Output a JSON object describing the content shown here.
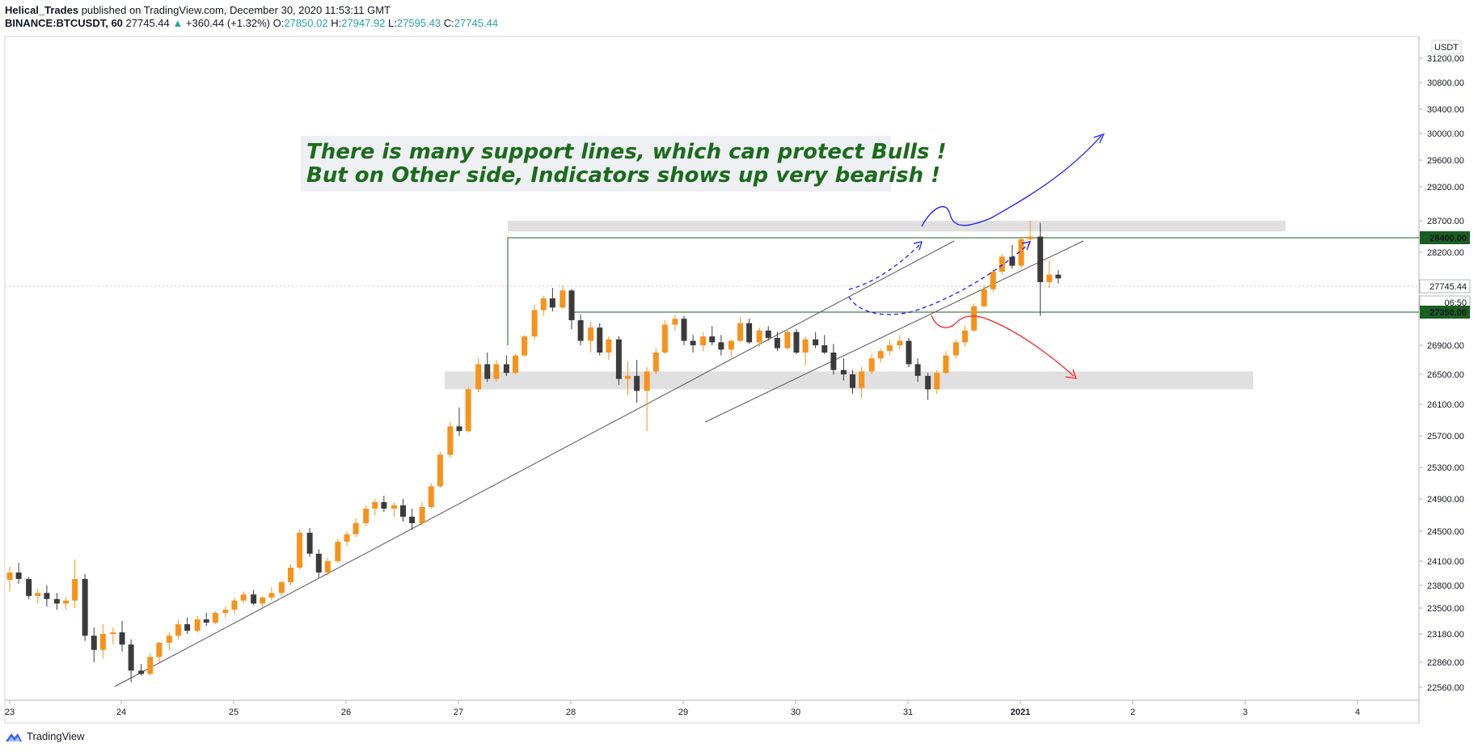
{
  "header": {
    "author": "Helical_Trades",
    "published": "published on TradingView.com, December 30, 2020 11:53:11 GMT",
    "symbol": "BINANCE:BTCUSDT, 60",
    "last": "27745.44",
    "change_arrow": "▲",
    "change": "+360.44 (+1.32%)",
    "o_label": "O:",
    "o": "27850.02",
    "h_label": "H:",
    "h": "27947.92",
    "l_label": "L:",
    "l": "27595.43",
    "c_label": "C:",
    "c": "27745.44"
  },
  "footer": {
    "brand": "TradingView",
    "icon": "tradingview-logo-icon"
  },
  "colors": {
    "up": "#f7931a",
    "down": "#3b3b3b",
    "support": "#1b5e20",
    "bull_arrow": "#1a1aff",
    "bear_arrow": "#ff2020",
    "zone": "#e0e0e0",
    "annotation": "#1b6b1b"
  },
  "chart_data": {
    "type": "candlestick",
    "currency_badge": "USDT",
    "y_ticks": [
      "31200.00",
      "30800.00",
      "30400.00",
      "30000.00",
      "29600.00",
      "29200.00",
      "28700.00",
      "28200.00",
      "26900.00",
      "26500.00",
      "26100.00",
      "25700.00",
      "25300.00",
      "24900.00",
      "24500.00",
      "24100.00",
      "23800.00",
      "23500.00",
      "23180.00",
      "22860.00",
      "22560.00"
    ],
    "x_ticks": [
      "23",
      "24",
      "25",
      "26",
      "27",
      "28",
      "29",
      "30",
      "31",
      "2021",
      "2",
      "3",
      "4"
    ],
    "price_labels": [
      {
        "id": "resistance",
        "text": "28400.00",
        "color": "#1b5e20"
      },
      {
        "id": "last",
        "text": "27745.44",
        "color": "#ffffff"
      },
      {
        "id": "countdown",
        "text": "06:50",
        "color": "#ffffff"
      },
      {
        "id": "support",
        "text": "27350.00",
        "color": "#1b5e20"
      }
    ],
    "horizontal_lines": [
      28400,
      27350
    ],
    "zones": [
      [
        28700,
        28510
      ],
      [
        26540,
        26300
      ]
    ],
    "annotation": {
      "line1": "There is many support lines, which can protect Bulls !",
      "line2": "But on Other side, Indicators shows up very bearish !"
    },
    "candles": [
      [
        0.0,
        23870,
        24030,
        23720,
        23960
      ],
      [
        0.08,
        23960,
        24080,
        23820,
        23880
      ],
      [
        0.17,
        23880,
        23900,
        23620,
        23660
      ],
      [
        0.25,
        23660,
        23760,
        23560,
        23700
      ],
      [
        0.33,
        23700,
        23800,
        23520,
        23620
      ],
      [
        0.42,
        23620,
        23700,
        23480,
        23560
      ],
      [
        0.5,
        23560,
        23640,
        23480,
        23600
      ],
      [
        0.58,
        23600,
        24120,
        23500,
        23880
      ],
      [
        0.67,
        23880,
        23940,
        23100,
        23160
      ],
      [
        0.75,
        23160,
        23260,
        22860,
        23000
      ],
      [
        0.83,
        23000,
        23300,
        22900,
        23180
      ],
      [
        0.92,
        23180,
        23260,
        23060,
        23200
      ],
      [
        1.0,
        23200,
        23340,
        22980,
        23060
      ],
      [
        1.08,
        23060,
        23120,
        22620,
        22760
      ],
      [
        1.17,
        22760,
        22840,
        22700,
        22720
      ],
      [
        1.25,
        22720,
        22960,
        22700,
        22920
      ],
      [
        1.33,
        22920,
        23090,
        22860,
        23080
      ],
      [
        1.42,
        23080,
        23200,
        23000,
        23160
      ],
      [
        1.5,
        23160,
        23360,
        23120,
        23300
      ],
      [
        1.58,
        23300,
        23380,
        23180,
        23220
      ],
      [
        1.67,
        23220,
        23400,
        23200,
        23360
      ],
      [
        1.75,
        23360,
        23440,
        23280,
        23320
      ],
      [
        1.83,
        23320,
        23460,
        23300,
        23440
      ],
      [
        1.92,
        23440,
        23520,
        23380,
        23480
      ],
      [
        2.0,
        23480,
        23640,
        23420,
        23600
      ],
      [
        2.08,
        23600,
        23720,
        23560,
        23680
      ],
      [
        2.17,
        23680,
        23740,
        23540,
        23560
      ],
      [
        2.25,
        23560,
        23660,
        23500,
        23640
      ],
      [
        2.33,
        23640,
        23780,
        23600,
        23700
      ],
      [
        2.42,
        23700,
        23860,
        23660,
        23840
      ],
      [
        2.5,
        23840,
        24060,
        23800,
        24020
      ],
      [
        2.58,
        24020,
        24520,
        24000,
        24480
      ],
      [
        2.67,
        24480,
        24540,
        24160,
        24200
      ],
      [
        2.75,
        24200,
        24260,
        23900,
        23960
      ],
      [
        2.83,
        23960,
        24140,
        23920,
        24100
      ],
      [
        2.92,
        24100,
        24400,
        24080,
        24360
      ],
      [
        3.0,
        24360,
        24500,
        24300,
        24460
      ],
      [
        3.08,
        24460,
        24660,
        24420,
        24600
      ],
      [
        3.17,
        24600,
        24820,
        24560,
        24780
      ],
      [
        3.25,
        24780,
        24900,
        24700,
        24860
      ],
      [
        3.33,
        24860,
        24940,
        24740,
        24780
      ],
      [
        3.42,
        24780,
        24860,
        24680,
        24820
      ],
      [
        3.5,
        24820,
        24900,
        24620,
        24680
      ],
      [
        3.58,
        24680,
        24780,
        24520,
        24600
      ],
      [
        3.67,
        24600,
        24860,
        24580,
        24800
      ],
      [
        3.75,
        24800,
        25100,
        24780,
        25060
      ],
      [
        3.83,
        25060,
        25500,
        25040,
        25460
      ],
      [
        3.92,
        25460,
        25880,
        25420,
        25820
      ],
      [
        4.0,
        25820,
        26060,
        25700,
        25760
      ],
      [
        4.08,
        25760,
        26320,
        25740,
        26300
      ],
      [
        4.17,
        26300,
        26720,
        26260,
        26640
      ],
      [
        4.25,
        26640,
        26800,
        26400,
        26440
      ],
      [
        4.33,
        26440,
        26700,
        26400,
        26640
      ],
      [
        4.42,
        26640,
        26760,
        26480,
        26520
      ],
      [
        4.5,
        26520,
        26780,
        26500,
        26760
      ],
      [
        4.58,
        26760,
        27040,
        26740,
        27020
      ],
      [
        4.67,
        27020,
        27460,
        26980,
        27380
      ],
      [
        4.75,
        27380,
        27600,
        27300,
        27560
      ],
      [
        4.83,
        27560,
        27720,
        27360,
        27420
      ],
      [
        4.92,
        27420,
        27760,
        27400,
        27680
      ],
      [
        5.0,
        27680,
        27700,
        27120,
        27240
      ],
      [
        5.08,
        27240,
        27320,
        26900,
        26960
      ],
      [
        5.17,
        26960,
        27220,
        26800,
        27140
      ],
      [
        5.25,
        27140,
        27200,
        26760,
        26800
      ],
      [
        5.33,
        26800,
        27020,
        26700,
        26980
      ],
      [
        5.42,
        26980,
        27020,
        26360,
        26440
      ],
      [
        5.5,
        26440,
        26680,
        26220,
        26480
      ],
      [
        5.58,
        26480,
        26700,
        26120,
        26280
      ],
      [
        5.67,
        26280,
        26600,
        25760,
        26540
      ],
      [
        5.75,
        26540,
        26860,
        26500,
        26800
      ],
      [
        5.83,
        26800,
        27240,
        26780,
        27180
      ],
      [
        5.92,
        27180,
        27320,
        27100,
        27260
      ],
      [
        6.0,
        27260,
        27300,
        26900,
        26960
      ],
      [
        6.08,
        26960,
        27040,
        26800,
        26900
      ],
      [
        6.17,
        26900,
        27080,
        26820,
        27020
      ],
      [
        6.25,
        27020,
        27160,
        26900,
        26940
      ],
      [
        6.33,
        26940,
        27040,
        26760,
        26840
      ],
      [
        6.42,
        26840,
        26980,
        26740,
        26960
      ],
      [
        6.5,
        26960,
        27280,
        26940,
        27200
      ],
      [
        6.58,
        27200,
        27260,
        26920,
        26940
      ],
      [
        6.67,
        26940,
        27140,
        26880,
        27100
      ],
      [
        6.75,
        27100,
        27160,
        26960,
        27000
      ],
      [
        6.83,
        27000,
        27080,
        26820,
        26860
      ],
      [
        6.92,
        26860,
        27120,
        26840,
        27080
      ],
      [
        7.0,
        27080,
        27120,
        26780,
        26800
      ],
      [
        7.08,
        26800,
        27020,
        26620,
        26980
      ],
      [
        7.17,
        26980,
        27080,
        26860,
        26900
      ],
      [
        7.25,
        26900,
        27040,
        26780,
        26800
      ],
      [
        7.33,
        26800,
        26920,
        26500,
        26560
      ],
      [
        7.42,
        26560,
        26720,
        26420,
        26500
      ],
      [
        7.5,
        26500,
        26560,
        26240,
        26320
      ],
      [
        7.58,
        26320,
        26600,
        26180,
        26540
      ],
      [
        7.67,
        26540,
        26780,
        26500,
        26720
      ],
      [
        7.75,
        26720,
        26860,
        26660,
        26820
      ],
      [
        7.83,
        26820,
        26980,
        26760,
        26900
      ],
      [
        7.92,
        26900,
        27040,
        26840,
        26960
      ],
      [
        8.0,
        26960,
        27000,
        26600,
        26640
      ],
      [
        8.08,
        26640,
        26720,
        26400,
        26480
      ],
      [
        8.17,
        26480,
        26520,
        26160,
        26300
      ],
      [
        8.25,
        26300,
        26560,
        26240,
        26520
      ],
      [
        8.33,
        26520,
        26820,
        26500,
        26760
      ],
      [
        8.42,
        26760,
        26980,
        26720,
        26940
      ],
      [
        8.5,
        26940,
        27160,
        26880,
        27100
      ],
      [
        8.58,
        27100,
        27480,
        27080,
        27440
      ],
      [
        8.67,
        27440,
        27760,
        27420,
        27700
      ],
      [
        8.75,
        27700,
        27980,
        27660,
        27940
      ],
      [
        8.83,
        27940,
        28180,
        27900,
        28140
      ],
      [
        8.92,
        28140,
        28300,
        27980,
        28020
      ],
      [
        9.0,
        28020,
        28420,
        27980,
        28380
      ],
      [
        9.08,
        28380,
        28700,
        28340,
        28420
      ],
      [
        9.17,
        28420,
        28660,
        27300,
        27800
      ],
      [
        9.25,
        27800,
        28080,
        27720,
        27900
      ],
      [
        9.33,
        27900,
        27960,
        27780,
        27850
      ]
    ]
  }
}
